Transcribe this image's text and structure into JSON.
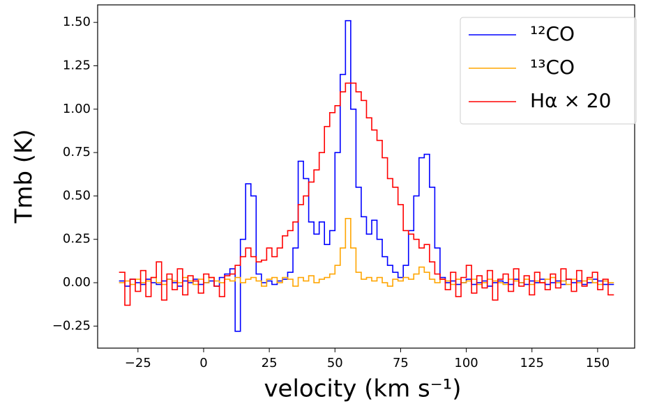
{
  "chart_data": {
    "type": "step",
    "xlabel": "velocity (km s⁻¹)",
    "ylabel": "Tmb (K)",
    "x": [
      -31,
      -29,
      -27,
      -25,
      -23,
      -21,
      -19,
      -17,
      -15,
      -13,
      -11,
      -9,
      -7,
      -5,
      -3,
      -1,
      1,
      3,
      5,
      7,
      9,
      11,
      13,
      15,
      17,
      19,
      21,
      23,
      25,
      27,
      29,
      31,
      33,
      35,
      37,
      39,
      41,
      43,
      45,
      47,
      49,
      51,
      53,
      55,
      57,
      59,
      61,
      63,
      65,
      67,
      69,
      71,
      73,
      75,
      77,
      79,
      81,
      83,
      85,
      87,
      89,
      91,
      93,
      95,
      97,
      99,
      101,
      103,
      105,
      107,
      109,
      111,
      113,
      115,
      117,
      119,
      121,
      123,
      125,
      127,
      129,
      131,
      133,
      135,
      137,
      139,
      141,
      143,
      145,
      147,
      149,
      151,
      153,
      155
    ],
    "series": [
      {
        "name": "¹²CO",
        "color": "#0000ff",
        "values": [
          0.01,
          -0.02,
          0.02,
          0.0,
          -0.01,
          0.02,
          0.0,
          -0.01,
          0.01,
          0.02,
          0.0,
          -0.02,
          0.01,
          0.0,
          0.02,
          -0.01,
          0.0,
          0.01,
          -0.02,
          0.03,
          0.05,
          0.08,
          -0.28,
          0.25,
          0.57,
          0.5,
          0.05,
          0.0,
          0.01,
          -0.01,
          0.01,
          0.02,
          0.06,
          0.2,
          0.7,
          0.6,
          0.35,
          0.28,
          0.35,
          0.22,
          0.3,
          0.75,
          1.2,
          1.51,
          1.0,
          0.55,
          0.38,
          0.28,
          0.36,
          0.25,
          0.15,
          0.1,
          0.06,
          0.03,
          0.1,
          0.3,
          0.5,
          0.72,
          0.74,
          0.55,
          0.2,
          0.03,
          0.0,
          0.01,
          -0.01,
          0.0,
          0.02,
          -0.01,
          0.0,
          0.01,
          -0.02,
          0.0,
          0.01,
          0.0,
          -0.01,
          0.02,
          0.0,
          -0.01,
          0.01,
          0.0,
          0.02,
          -0.01,
          0.0,
          0.01,
          -0.01,
          0.02,
          0.0,
          0.01,
          -0.01,
          0.0,
          0.02,
          0.01,
          -0.01,
          -0.01
        ]
      },
      {
        "name": "¹³CO",
        "color": "#ffa500",
        "values": [
          0.0,
          0.01,
          -0.01,
          0.02,
          0.0,
          0.01,
          0.03,
          0.0,
          -0.01,
          0.02,
          0.01,
          0.0,
          0.03,
          0.01,
          -0.01,
          0.02,
          0.0,
          0.03,
          0.01,
          0.0,
          0.02,
          0.01,
          0.03,
          0.0,
          0.02,
          0.03,
          0.01,
          -0.02,
          0.02,
          0.03,
          0.0,
          0.03,
          0.02,
          -0.02,
          0.03,
          0.01,
          0.04,
          0.0,
          0.02,
          0.03,
          0.05,
          0.1,
          0.2,
          0.37,
          0.2,
          0.06,
          0.02,
          0.03,
          0.01,
          0.03,
          0.0,
          -0.02,
          0.02,
          0.01,
          0.03,
          0.02,
          0.05,
          0.09,
          0.06,
          0.02,
          0.0,
          0.02,
          0.01,
          -0.01,
          0.02,
          0.0,
          0.01,
          0.02,
          -0.01,
          0.0,
          0.02,
          0.01,
          0.0,
          -0.01,
          0.02,
          0.01,
          0.0,
          0.02,
          -0.01,
          0.01,
          0.0,
          0.02,
          0.03,
          0.0,
          0.01,
          -0.01,
          0.02,
          0.0,
          0.01,
          0.02,
          0.0,
          -0.01,
          0.01,
          0.0
        ]
      },
      {
        "name": "Hα × 20",
        "color": "#ff0000",
        "values": [
          0.06,
          -0.13,
          0.02,
          -0.05,
          0.07,
          -0.08,
          0.03,
          0.12,
          -0.1,
          0.05,
          -0.04,
          0.08,
          -0.07,
          0.04,
          0.01,
          -0.06,
          0.05,
          0.03,
          -0.02,
          -0.08,
          0.04,
          0.05,
          0.1,
          0.15,
          0.2,
          0.15,
          0.12,
          0.13,
          0.2,
          0.15,
          0.2,
          0.27,
          0.3,
          0.35,
          0.45,
          0.5,
          0.58,
          0.65,
          0.75,
          0.9,
          0.98,
          1.02,
          1.1,
          1.15,
          1.15,
          1.1,
          1.05,
          0.95,
          0.88,
          0.82,
          0.72,
          0.6,
          0.55,
          0.45,
          0.3,
          0.28,
          0.25,
          0.2,
          0.22,
          0.12,
          0.05,
          0.02,
          -0.04,
          0.06,
          -0.08,
          0.03,
          0.1,
          -0.06,
          0.04,
          -0.03,
          0.07,
          -0.1,
          0.02,
          0.05,
          -0.05,
          0.08,
          -0.02,
          0.04,
          -0.07,
          0.06,
          0.0,
          -0.04,
          0.05,
          -0.03,
          0.08,
          0.02,
          -0.05,
          0.07,
          -0.02,
          0.03,
          0.06,
          -0.04,
          0.02,
          -0.07
        ]
      }
    ],
    "xlim": [
      -40.35,
      164.1
    ],
    "ylim": [
      -0.377,
      1.601
    ],
    "xticks": [
      {
        "value": -25,
        "label": "−25"
      },
      0,
      25,
      50,
      75,
      100,
      125,
      150
    ],
    "yticks": [
      {
        "value": -0.25,
        "label": "−0.25"
      },
      {
        "value": 0,
        "label": "0.00"
      },
      0.25,
      {
        "value": 0.5,
        "label": "0.50"
      },
      0.75,
      {
        "value": 1,
        "label": "1.00"
      },
      1.25,
      {
        "value": 1.5,
        "label": "1.50"
      }
    ],
    "legend": "upper right"
  }
}
